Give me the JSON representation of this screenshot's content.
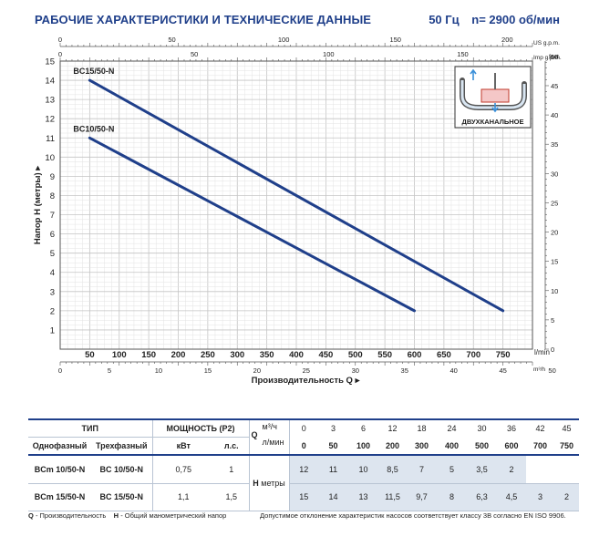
{
  "header": {
    "title": "РАБОЧИЕ ХАРАКТЕРИСТИКИ И ТЕХНИЧЕСКИЕ ДАННЫЕ",
    "frequency": "50 Гц",
    "speed": "n= 2900 об/мин"
  },
  "chart_data": {
    "type": "line",
    "xlabel": "Производительность Q",
    "ylabel": "Напор H (метры)",
    "x_unit": "l/min",
    "xlim": [
      0,
      800
    ],
    "ylim": [
      0,
      15
    ],
    "grid": true,
    "x_ticks": [
      50,
      100,
      150,
      200,
      250,
      300,
      350,
      400,
      450,
      500,
      550,
      600,
      650,
      700,
      750
    ],
    "y_ticks": [
      1,
      2,
      3,
      4,
      5,
      6,
      7,
      8,
      9,
      10,
      11,
      12,
      13,
      14,
      15
    ],
    "secondary_axes": {
      "us_gpm": {
        "unit": "US g.p.m.",
        "max": 211.3,
        "ticks": [
          0,
          50,
          100,
          150,
          200
        ]
      },
      "imp_gpm": {
        "unit": "Imp g.p.m.",
        "max": 176.0,
        "ticks": [
          0,
          50,
          100,
          150
        ]
      },
      "m3h": {
        "unit": "m³/h",
        "max": 48,
        "ticks": [
          0,
          5,
          10,
          15,
          20,
          25,
          30,
          35,
          40,
          45,
          50
        ]
      },
      "feet": {
        "unit": "feet",
        "max": 49.2,
        "ticks": [
          0,
          5,
          10,
          15,
          20,
          25,
          30,
          35,
          40,
          45,
          50
        ]
      }
    },
    "series": [
      {
        "name": "BC15/50-N",
        "x": [
          50,
          750
        ],
        "y": [
          14,
          2
        ],
        "color": "#1f3f8a"
      },
      {
        "name": "BC10/50-N",
        "x": [
          50,
          600
        ],
        "y": [
          11,
          2
        ],
        "color": "#1f3f8a"
      }
    ],
    "inset_label": "ДВУХКАНАЛЬНОЕ"
  },
  "table": {
    "type_header": "ТИП",
    "power_header": "МОЩНОСТЬ (P2)",
    "single_phase": "Однофазный",
    "three_phase": "Трехфазный",
    "kw": "кВт",
    "hp": "л.с.",
    "q_label": "Q",
    "q_unit_m3": "м³/ч",
    "q_unit_l": "л/мин",
    "h_label": "H",
    "h_unit": "метры",
    "m3h": [
      "0",
      "3",
      "6",
      "12",
      "18",
      "24",
      "30",
      "36",
      "42",
      "45"
    ],
    "lmin": [
      "0",
      "50",
      "100",
      "200",
      "300",
      "400",
      "500",
      "600",
      "700",
      "750"
    ],
    "rows": [
      {
        "single": "BCm 10/50-N",
        "three": "BC 10/50-N",
        "kw": "0,75",
        "hp": "1",
        "h": [
          "12",
          "11",
          "10",
          "8,5",
          "7",
          "5",
          "3,5",
          "2",
          "",
          ""
        ]
      },
      {
        "single": "BCm 15/50-N",
        "three": "BC 15/50-N",
        "kw": "1,1",
        "hp": "1,5",
        "h": [
          "15",
          "14",
          "13",
          "11,5",
          "9,7",
          "8",
          "6,3",
          "4,5",
          "3",
          "2"
        ]
      }
    ]
  },
  "footer": {
    "q_key": "Q",
    "q_text": "- Производительность",
    "h_key": "H",
    "h_text": "- Общий манометрический напор",
    "tolerance": "Допустимое отклонение характеристик насосов соответствует классу 3В согласно EN ISO 9906."
  }
}
